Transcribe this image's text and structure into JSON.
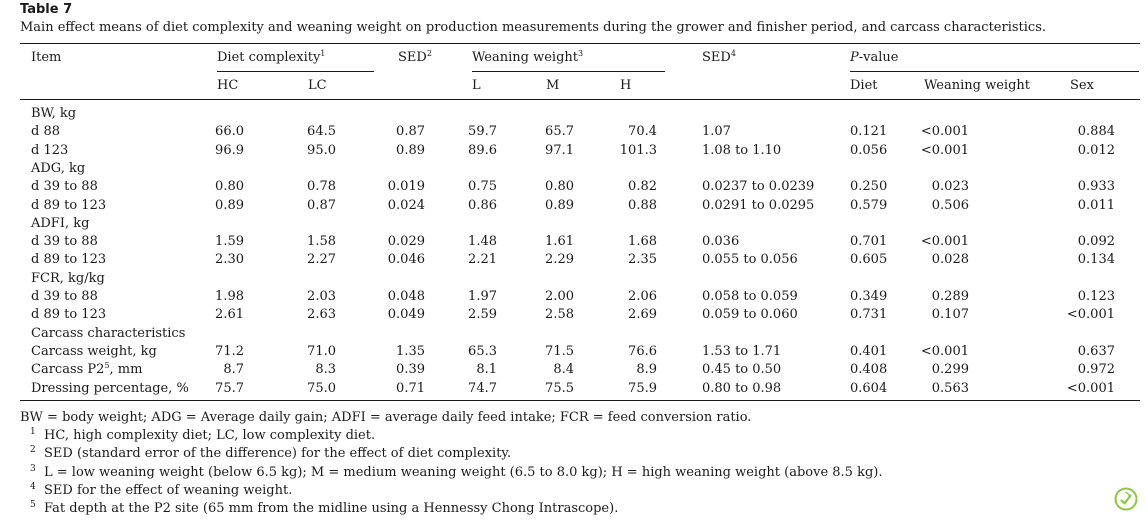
{
  "table_label": "Table 7",
  "caption": "Main effect means of diet complexity and weaning weight on production measurements during the grower and finisher period, and carcass characteristics.",
  "header": {
    "item": "Item",
    "diet_complexity": "Diet complexity",
    "diet_complexity_sup": "1",
    "sed1": "SED",
    "sed1_sup": "2",
    "weaning_weight": "Weaning weight",
    "weaning_weight_sup": "3",
    "sed2": "SED",
    "sed2_sup": "4",
    "p_value_p": "P",
    "p_value_rest": "-value",
    "hc": "HC",
    "lc": "LC",
    "l": "L",
    "m": "M",
    "h": "H",
    "diet": "Diet",
    "weaning_weight_sub": "Weaning weight",
    "sex": "Sex"
  },
  "rows": [
    {
      "item": "BW, kg",
      "group": true
    },
    {
      "item": "d 88",
      "hc": "66.0",
      "lc": "64.5",
      "sed1": "0.87",
      "l": "59.7",
      "m": "65.7",
      "h": "70.4",
      "sed2": "1.07",
      "diet": "0.121",
      "ww": "<0.001",
      "sex": "0.884"
    },
    {
      "item": "d 123",
      "hc": "96.9",
      "lc": "95.0",
      "sed1": "0.89",
      "l": "89.6",
      "m": "97.1",
      "h": "101.3",
      "sed2": "1.08 to 1.10",
      "diet": "0.056",
      "ww": "<0.001",
      "sex": "0.012"
    },
    {
      "item": "ADG, kg",
      "group": true
    },
    {
      "item": "d 39 to 88",
      "hc": "0.80",
      "lc": "0.78",
      "sed1": "0.019",
      "l": "0.75",
      "m": "0.80",
      "h": "0.82",
      "sed2": "0.0237 to 0.0239",
      "diet": "0.250",
      "ww": "0.023",
      "sex": "0.933"
    },
    {
      "item": "d 89 to 123",
      "hc": "0.89",
      "lc": "0.87",
      "sed1": "0.024",
      "l": "0.86",
      "m": "0.89",
      "h": "0.88",
      "sed2": "0.0291 to 0.0295",
      "diet": "0.579",
      "ww": "0.506",
      "sex": "0.011"
    },
    {
      "item": "ADFI, kg",
      "group": true
    },
    {
      "item": "d 39 to 88",
      "hc": "1.59",
      "lc": "1.58",
      "sed1": "0.029",
      "l": "1.48",
      "m": "1.61",
      "h": "1.68",
      "sed2": "0.036",
      "diet": "0.701",
      "ww": "<0.001",
      "sex": "0.092"
    },
    {
      "item": "d 89 to 123",
      "hc": "2.30",
      "lc": "2.27",
      "sed1": "0.046",
      "l": "2.21",
      "m": "2.29",
      "h": "2.35",
      "sed2": "0.055 to 0.056",
      "diet": "0.605",
      "ww": "0.028",
      "sex": "0.134"
    },
    {
      "item": "FCR, kg/kg",
      "group": true
    },
    {
      "item": "d 39 to 88",
      "hc": "1.98",
      "lc": "2.03",
      "sed1": "0.048",
      "l": "1.97",
      "m": "2.00",
      "h": "2.06",
      "sed2": "0.058 to 0.059",
      "diet": "0.349",
      "ww": "0.289",
      "sex": "0.123"
    },
    {
      "item": "d 89 to 123",
      "hc": "2.61",
      "lc": "2.63",
      "sed1": "0.049",
      "l": "2.59",
      "m": "2.58",
      "h": "2.69",
      "sed2": "0.059 to 0.060",
      "diet": "0.731",
      "ww": "0.107",
      "sex": "<0.001"
    },
    {
      "item": "Carcass characteristics",
      "group": true
    },
    {
      "item": "Carcass weight, kg",
      "hc": "71.2",
      "lc": "71.0",
      "sed1": "1.35",
      "l": "65.3",
      "m": "71.5",
      "h": "76.6",
      "sed2": "1.53 to 1.71",
      "diet": "0.401",
      "ww": "<0.001",
      "sex": "0.637"
    },
    {
      "item": "Carcass P2",
      "item_sup": "5",
      "item_suffix": ", mm",
      "hc": "8.7",
      "lc": "8.3",
      "sed1": "0.39",
      "l": "8.1",
      "m": "8.4",
      "h": "8.9",
      "sed2": "0.45 to 0.50",
      "diet": "0.408",
      "ww": "0.299",
      "sex": "0.972"
    },
    {
      "item": "Dressing percentage, %",
      "hc": "75.7",
      "lc": "75.0",
      "sed1": "0.71",
      "l": "74.7",
      "m": "75.5",
      "h": "75.9",
      "sed2": "0.80 to 0.98",
      "diet": "0.604",
      "ww": "0.563",
      "sex": "<0.001"
    }
  ],
  "footnotes": {
    "abbrev": "BW = body weight; ADG = Average daily gain; ADFI = average daily feed intake; FCR = feed conversion ratio.",
    "notes": [
      {
        "mark": "1",
        "text": "HC, high complexity diet; LC, low complexity diet."
      },
      {
        "mark": "2",
        "text": "SED (standard error of the difference) for the effect of diet complexity."
      },
      {
        "mark": "3",
        "text": "L = low weaning weight (below 6.5 kg); M = medium weaning weight (6.5 to 8.0 kg); H = high weaning weight (above 8.5 kg)."
      },
      {
        "mark": "4",
        "text": "SED for the effect of weaning weight."
      },
      {
        "mark": "5",
        "text": "Fat depth at the P2 site (65 mm from the midline using a Hennessy Chong Intrascope)."
      }
    ]
  },
  "badge_icon": "leaf-check-icon",
  "colors": {
    "badge": "#8dc63f"
  }
}
